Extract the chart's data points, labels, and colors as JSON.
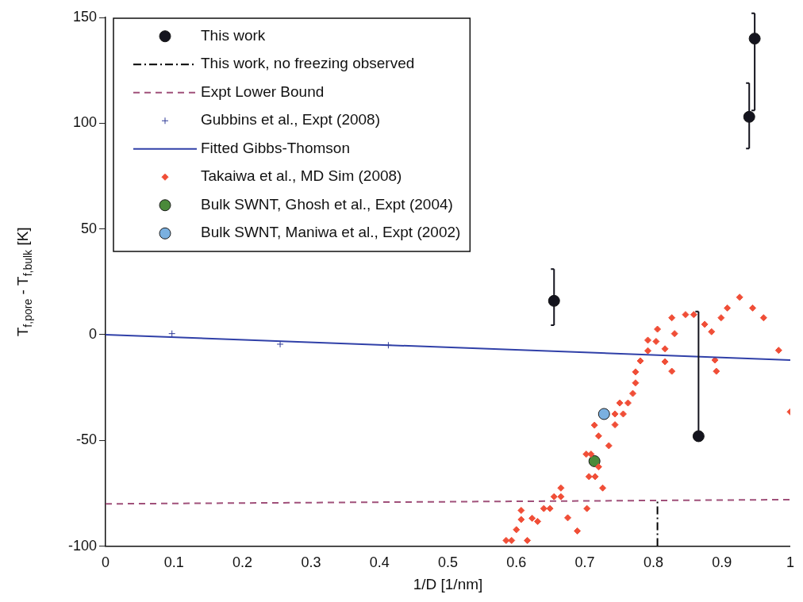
{
  "chart_data": {
    "type": "scatter",
    "xlabel": "1/D [1/nm]",
    "ylabel": "T$_{f,pore}$ - T$_{f,bulk}$ [K]",
    "xlim": [
      0,
      1
    ],
    "xticks": [
      0,
      0.1,
      0.2,
      0.3,
      0.4,
      0.5,
      0.6,
      0.7,
      0.8,
      0.9,
      1
    ],
    "ylim": [
      -100,
      150
    ],
    "yticks": [
      -100,
      -50,
      0,
      50,
      100,
      150
    ],
    "grid": false,
    "legend": "top left",
    "series": [
      {
        "name": "This work",
        "type": "scatter",
        "marker": "circle",
        "color": "#14141e",
        "x": [
          0.655,
          0.866,
          0.94,
          0.948
        ],
        "values": [
          16,
          -48,
          103,
          140
        ],
        "errors": [
          [
            4.5,
            31
          ],
          [
            -48,
            11
          ],
          [
            88,
            119
          ],
          [
            106,
            152
          ]
        ]
      },
      {
        "name": "This work, no freezing observed",
        "type": "line",
        "line_style": "dashdot",
        "color": "#000000",
        "x": [
          0.806,
          0.806
        ],
        "values": [
          -100,
          -79
        ]
      },
      {
        "name": "Expt Lower Bound",
        "type": "line",
        "line_style": "dashed",
        "color": "#a0507a",
        "x": [
          0,
          1
        ],
        "values": [
          -80,
          -78
        ]
      },
      {
        "name": "Gubbins et al., Expt (2008)",
        "type": "scatter",
        "marker": "cross",
        "color": "#303c98",
        "x": [
          0.097,
          0.255,
          0.413
        ],
        "values": [
          0.5,
          -4.5,
          -5
        ]
      },
      {
        "name": "Fitted Gibbs-Thomson",
        "type": "line",
        "line_style": "solid",
        "color": "#3040a8",
        "x": [
          0,
          1
        ],
        "values": [
          0,
          -12
        ]
      },
      {
        "name": "Takaiwa et al., MD Sim (2008)",
        "type": "scatter",
        "marker": "diamond",
        "color": "#f04e37",
        "x": [
          0.926,
          0.945,
          0.961,
          0.908,
          0.899,
          0.875,
          0.885,
          0.859,
          0.847,
          0.827,
          0.831,
          0.806,
          0.792,
          0.804,
          0.792,
          0.817,
          0.817,
          0.827,
          0.781,
          0.774,
          0.774,
          0.77,
          0.763,
          0.751,
          0.756,
          0.744,
          0.744,
          0.714,
          0.72,
          0.735,
          0.702,
          0.709,
          0.72,
          0.706,
          0.715,
          0.726,
          0.703,
          0.689,
          0.675,
          0.665,
          0.665,
          0.655,
          0.649,
          0.64,
          0.631,
          0.623,
          0.607,
          0.607,
          0.6,
          0.616,
          0.585,
          0.593,
          0.89,
          0.892,
          0.983,
          1.0
        ],
        "values": [
          17.7,
          12.6,
          8,
          12.6,
          8,
          4.9,
          1.4,
          9.5,
          9.5,
          8,
          0.5,
          2.6,
          -2.6,
          -3.2,
          -7.6,
          -6.7,
          -12.8,
          -17.3,
          -12.4,
          -17.6,
          -22.8,
          -27.8,
          -32.3,
          -32.3,
          -37.5,
          -37.5,
          -42.6,
          -42.8,
          -47.9,
          -52.5,
          -56.5,
          -56.5,
          -62.5,
          -67.1,
          -67.1,
          -72.5,
          -82.2,
          -92.8,
          -86.6,
          -72.5,
          -76.6,
          -76.6,
          -82.2,
          -82.2,
          -88.3,
          -86.8,
          -83.1,
          -87.4,
          -92.2,
          -97.3,
          -97.3,
          -97.3,
          -12,
          -17.3,
          -7.4,
          -36.5
        ]
      },
      {
        "name": "Bulk SWNT, Ghosh et al., Expt (2004)",
        "type": "scatter",
        "marker": "circle",
        "color": "#4a8a3a",
        "x": [
          0.714
        ],
        "values": [
          -59.8
        ]
      },
      {
        "name": "Bulk SWNT, Maniwa et al., Expt (2002)",
        "type": "scatter",
        "marker": "circle",
        "color": "#7ab0e0",
        "x": [
          0.728
        ],
        "values": [
          -37.5
        ]
      }
    ]
  }
}
